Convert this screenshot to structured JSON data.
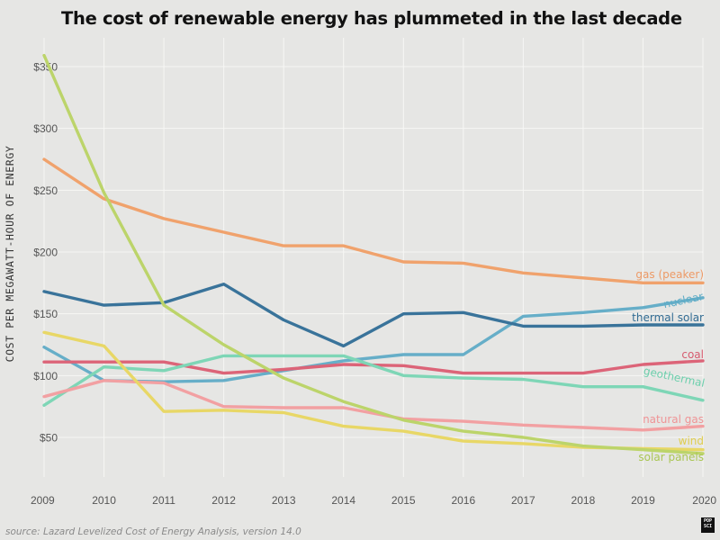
{
  "title": "The cost of renewable energy has plummeted in the last decade",
  "source": "source: Lazard Levelized Cost of Energy Analysis, version 14.0",
  "logo": {
    "line1": "POP",
    "line2": "SCI"
  },
  "chart_data": {
    "type": "line",
    "title": "The cost of renewable energy has plummeted in the last decade",
    "xlabel": "",
    "ylabel": "COST PER MEGAWATT-HOUR OF ENERGY",
    "x": [
      2009,
      2010,
      2011,
      2012,
      2013,
      2014,
      2015,
      2016,
      2017,
      2018,
      2019,
      2020
    ],
    "x_ticks": [
      "2009",
      "2010",
      "2011",
      "2012",
      "2013",
      "2014",
      "2015",
      "2016",
      "2017",
      "2018",
      "2019",
      "2020"
    ],
    "xlim": [
      2009,
      2020
    ],
    "ylim": [
      25,
      365
    ],
    "y_ticks": [
      50,
      100,
      150,
      200,
      250,
      300,
      350
    ],
    "y_tick_labels": [
      "$50",
      "$100",
      "$150",
      "$200",
      "$250",
      "$300",
      "$350"
    ],
    "grid": true,
    "legend": "inline labels at right end of each line",
    "series": [
      {
        "name": "gas (peaker)",
        "color": "#f0a26c",
        "label_color": "#ed9a66",
        "values": [
          275,
          243,
          227,
          216,
          205,
          205,
          192,
          191,
          183,
          179,
          175,
          175
        ]
      },
      {
        "name": "nuclear",
        "color": "#66aec8",
        "label_color": "#5eacc6",
        "values": [
          123,
          96,
          95,
          96,
          104,
          112,
          117,
          117,
          148,
          151,
          155,
          163
        ]
      },
      {
        "name": "thermal solar",
        "color": "#39739a",
        "label_color": "#336d94",
        "values": [
          168,
          157,
          159,
          174,
          145,
          124,
          150,
          151,
          140,
          140,
          141,
          141
        ]
      },
      {
        "name": "coal",
        "color": "#dc6478",
        "label_color": "#d65a6e",
        "values": [
          111,
          111,
          111,
          102,
          105,
          109,
          108,
          102,
          102,
          102,
          109,
          112
        ]
      },
      {
        "name": "geothermal",
        "color": "#7ed6b6",
        "label_color": "#6ccfac",
        "values": [
          76,
          107,
          104,
          116,
          116,
          116,
          100,
          98,
          97,
          91,
          91,
          80
        ]
      },
      {
        "name": "natural gas",
        "color": "#f2a0a2",
        "label_color": "#ef9496",
        "values": [
          83,
          96,
          94,
          75,
          74,
          74,
          65,
          63,
          60,
          58,
          56,
          59
        ]
      },
      {
        "name": "wind",
        "color": "#e8d766",
        "label_color": "#dfcd4e",
        "values": [
          135,
          124,
          71,
          72,
          70,
          59,
          55,
          47,
          45,
          42,
          41,
          40
        ]
      },
      {
        "name": "solar panels",
        "color": "#bcd46a",
        "label_color": "#aac654",
        "values": [
          359,
          248,
          157,
          125,
          98,
          79,
          64,
          55,
          50,
          43,
          40,
          37
        ]
      }
    ]
  }
}
